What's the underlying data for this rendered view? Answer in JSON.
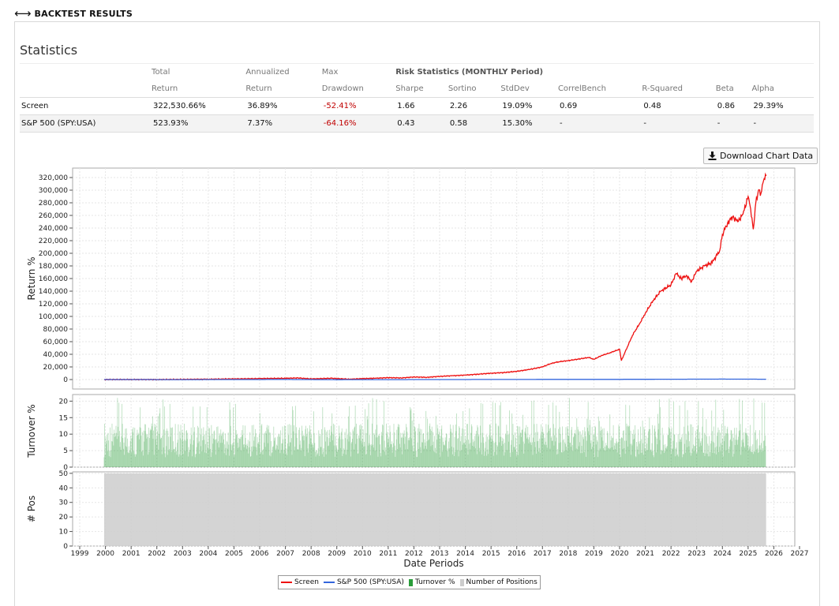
{
  "header": {
    "back_label": "⟷",
    "title": "BACKTEST RESULTS"
  },
  "statistics": {
    "title": "Statistics",
    "risk_header": "Risk Statistics (MONTHLY Period)",
    "columns_top": [
      "",
      "Total",
      "Annualized",
      "Max"
    ],
    "columns": [
      "",
      "Return",
      "Return",
      "Drawdown",
      "Sharpe",
      "Sortino",
      "StdDev",
      "CorrelBench",
      "R-Squared",
      "Beta",
      "Alpha"
    ],
    "rows": [
      [
        "Screen",
        "322,530.66%",
        "36.89%",
        "-52.41%",
        "1.66",
        "2.26",
        "19.09%",
        "0.69",
        "0.48",
        "0.86",
        "29.39%"
      ],
      [
        "S&P 500 (SPY:USA)",
        "523.93%",
        "7.37%",
        "-64.16%",
        "0.43",
        "0.58",
        "15.30%",
        "-",
        "-",
        "-",
        "-"
      ]
    ]
  },
  "download_button": {
    "label": "Download Chart Data",
    "icon": "download-icon"
  },
  "chart_data": {
    "type": "line",
    "colors": {
      "screen": "#ee1111",
      "benchmark": "#3366dd",
      "turnover": "#2a9d3a",
      "positions": "#cccccc"
    },
    "x_label": "Date Periods",
    "x_ticks": [
      "1999",
      "2000",
      "2001",
      "2002",
      "2003",
      "2004",
      "2005",
      "2006",
      "2007",
      "2008",
      "2009",
      "2010",
      "2011",
      "2012",
      "2013",
      "2014",
      "2015",
      "2016",
      "2017",
      "2018",
      "2019",
      "2020",
      "2021",
      "2022",
      "2023",
      "2024",
      "2025",
      "2026",
      "2027"
    ],
    "return_panel": {
      "ylabel": "Return %",
      "ylim": [
        -15000,
        335000
      ],
      "yticks": [
        "0",
        "20,000",
        "40,000",
        "60,000",
        "80,000",
        "100,000",
        "120,000",
        "140,000",
        "160,000",
        "180,000",
        "200,000",
        "220,000",
        "240,000",
        "260,000",
        "280,000",
        "300,000",
        "320,000"
      ],
      "series": [
        {
          "name": "Screen",
          "x": [
            1999.95,
            2002,
            2004,
            2005,
            2006,
            2007,
            2007.5,
            2008,
            2008.8,
            2009.5,
            2010,
            2010.5,
            2011,
            2011.5,
            2012,
            2012.5,
            2013,
            2013.5,
            2014,
            2014.5,
            2015,
            2015.5,
            2016,
            2016.5,
            2017,
            2017.3,
            2017.6,
            2018,
            2018.5,
            2018.8,
            2019,
            2019.3,
            2019.6,
            2020,
            2020.07,
            2020.2,
            2020.5,
            2020.8,
            2021,
            2021.3,
            2021.6,
            2022,
            2022.2,
            2022.4,
            2022.6,
            2022.8,
            2023,
            2023.3,
            2023.6,
            2023.9,
            2024,
            2024.2,
            2024.4,
            2024.6,
            2024.8,
            2025,
            2025.1,
            2025.2,
            2025.3,
            2025.4,
            2025.5,
            2025.6,
            2025.7
          ],
          "y": [
            0,
            0,
            500,
            1000,
            1500,
            2000,
            2500,
            1000,
            2000,
            500,
            1500,
            2000,
            3000,
            2500,
            4000,
            3500,
            5000,
            6000,
            7000,
            8500,
            10000,
            11000,
            13000,
            16000,
            20000,
            25000,
            28000,
            30000,
            33000,
            35000,
            32000,
            38000,
            42000,
            48000,
            30000,
            42000,
            70000,
            90000,
            105000,
            125000,
            140000,
            150000,
            168000,
            160000,
            165000,
            155000,
            172000,
            180000,
            185000,
            205000,
            230000,
            248000,
            258000,
            250000,
            262000,
            290000,
            270000,
            238000,
            280000,
            300000,
            295000,
            315000,
            322530
          ]
        },
        {
          "name": "S&P 500 (SPY:USA)",
          "x": [
            1999.95,
            2003,
            2007,
            2009,
            2013,
            2017,
            2020,
            2022,
            2024,
            2025.7
          ],
          "y": [
            0,
            -100,
            100,
            -200,
            0,
            200,
            300,
            500,
            700,
            524
          ]
        }
      ]
    },
    "turnover_panel": {
      "ylabel": "Turnover %",
      "series_name": "Turnover %",
      "ylim": [
        0,
        22
      ],
      "yticks": [
        "0",
        "5",
        "10",
        "15",
        "20"
      ],
      "typical": [
        3,
        14
      ],
      "max": 21
    },
    "positions_panel": {
      "ylabel": "# Pos",
      "series_name": "Number of Positions",
      "ylim": [
        0,
        51
      ],
      "yticks": [
        "0",
        "10",
        "20",
        "30",
        "40",
        "50"
      ],
      "value": 50
    },
    "legend": [
      "Screen",
      "S&P 500 (SPY:USA)",
      "Turnover %",
      "Number of Positions"
    ]
  }
}
